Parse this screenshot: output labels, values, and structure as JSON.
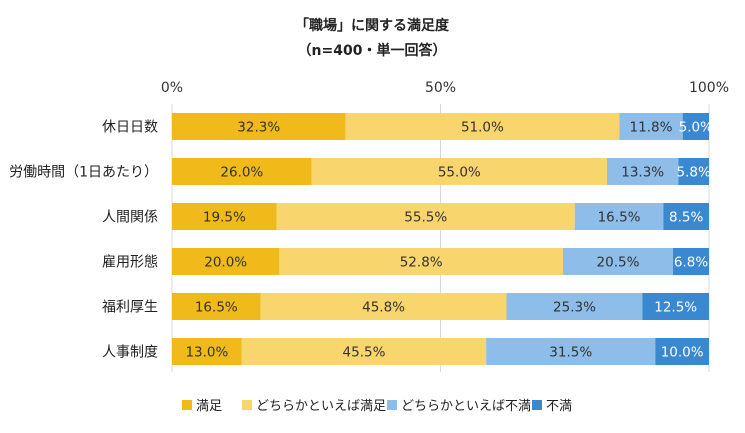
{
  "chart_data": {
    "type": "bar",
    "orientation": "horizontal",
    "stacked": true,
    "title": "「職場」に関する満足度",
    "subtitle": "（n=400・単一回答）",
    "categories": [
      "休日日数",
      "労働時間（1日あたり）",
      "人間関係",
      "雇用形態",
      "福利厚生",
      "人事制度"
    ],
    "series": [
      {
        "name": "満足",
        "color": "#F0BA1A",
        "values": [
          32.3,
          26.0,
          19.5,
          20.0,
          16.5,
          13.0
        ],
        "labels": [
          "32.3%",
          "26.0%",
          "19.5%",
          "20.0%",
          "16.5%",
          "13.0%"
        ]
      },
      {
        "name": "どちらかといえば満足",
        "color": "#F9D56E",
        "values": [
          51.0,
          55.0,
          55.5,
          52.8,
          45.8,
          45.5
        ],
        "labels": [
          "51.0%",
          "55.0%",
          "55.5%",
          "52.8%",
          "45.8%",
          "45.5%"
        ]
      },
      {
        "name": "どちらかといえば不満",
        "color": "#8DBDE8",
        "values": [
          11.8,
          13.3,
          16.5,
          20.5,
          25.3,
          31.5
        ],
        "labels": [
          "11.8%",
          "13.3%",
          "16.5%",
          "20.5%",
          "25.3%",
          "31.5%"
        ]
      },
      {
        "name": "不満",
        "color": "#3A88D0",
        "values": [
          5.0,
          5.8,
          8.5,
          6.8,
          12.5,
          10.0
        ],
        "labels": [
          "5.0%",
          "5.8%",
          "8.5%",
          "6.8%",
          "12.5%",
          "10.0%"
        ]
      }
    ],
    "xlim": [
      0,
      100
    ],
    "xticks": [
      "0%",
      "50%",
      "100%"
    ],
    "grid": "vertical",
    "legend": "bottom"
  }
}
